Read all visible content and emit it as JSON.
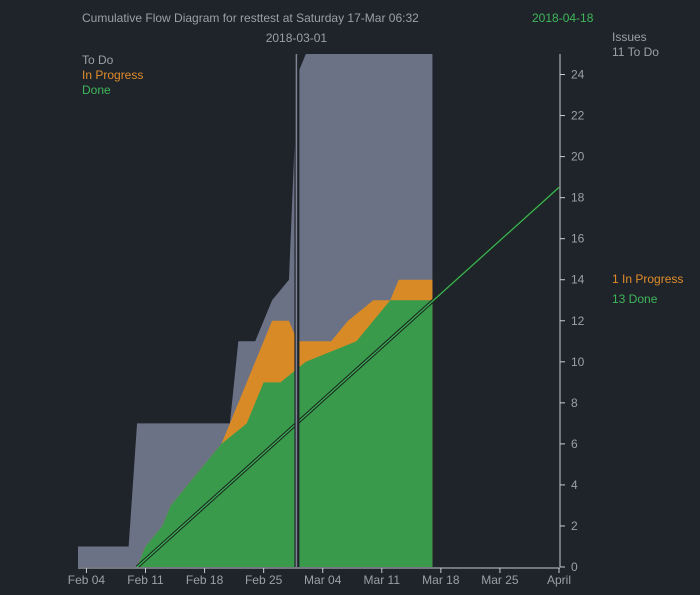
{
  "chart_data": {
    "type": "area",
    "title": "Cumulative Flow Diagram for resttest at Saturday 17-Mar 06:32",
    "forecast_date": "2018-04-18",
    "marker_date": "2018-03-01",
    "x_range": [
      "2018-02-03",
      "2018-04-01"
    ],
    "ylim": [
      0,
      25
    ],
    "y_ticks": [
      0,
      2,
      4,
      6,
      8,
      10,
      12,
      14,
      16,
      18,
      20,
      22,
      24
    ],
    "x_ticks": [
      {
        "date": "2018-02-04",
        "label": "Feb 04"
      },
      {
        "date": "2018-02-11",
        "label": "Feb 11"
      },
      {
        "date": "2018-02-18",
        "label": "Feb 18"
      },
      {
        "date": "2018-02-25",
        "label": "Feb 25"
      },
      {
        "date": "2018-03-04",
        "label": "Mar 04"
      },
      {
        "date": "2018-03-11",
        "label": "Mar 11"
      },
      {
        "date": "2018-03-18",
        "label": "Mar 18"
      },
      {
        "date": "2018-03-25",
        "label": "Mar 25"
      },
      {
        "date": "2018-04-01",
        "label": "April"
      }
    ],
    "colors": {
      "todo": "#6c7286",
      "in_progress": "#d88a26",
      "done": "#399a4c",
      "grid": "#c9ccd1"
    },
    "legend": [
      "To Do",
      "In Progress",
      "Done"
    ],
    "right_labels": {
      "header": "Issues",
      "todo": "11 To Do",
      "in_progress": "1 In Progress",
      "done": "13 Done"
    },
    "series": [
      {
        "name": "Done",
        "points": [
          [
            "2018-02-10",
            0
          ],
          [
            "2018-02-11",
            1
          ],
          [
            "2018-02-13",
            2
          ],
          [
            "2018-02-14",
            3
          ],
          [
            "2018-02-16",
            4
          ],
          [
            "2018-02-18",
            5
          ],
          [
            "2018-02-20",
            6
          ],
          [
            "2018-02-23",
            7
          ],
          [
            "2018-02-25",
            9
          ],
          [
            "2018-02-27",
            9
          ],
          [
            "2018-03-02",
            10
          ],
          [
            "2018-03-08",
            11
          ],
          [
            "2018-03-10",
            12
          ],
          [
            "2018-03-12",
            13
          ],
          [
            "2018-03-17",
            13
          ]
        ]
      },
      {
        "name": "In Progress",
        "points": [
          [
            "2018-02-10",
            0
          ],
          [
            "2018-02-11",
            1
          ],
          [
            "2018-02-13",
            2
          ],
          [
            "2018-02-14",
            3
          ],
          [
            "2018-02-16",
            4
          ],
          [
            "2018-02-18",
            5
          ],
          [
            "2018-02-20",
            6
          ],
          [
            "2018-02-21",
            7
          ],
          [
            "2018-02-22",
            8
          ],
          [
            "2018-02-23",
            9
          ],
          [
            "2018-02-24",
            10
          ],
          [
            "2018-02-25",
            11
          ],
          [
            "2018-02-26",
            12
          ],
          [
            "2018-02-28",
            12
          ],
          [
            "2018-03-01",
            11
          ],
          [
            "2018-03-05",
            11
          ],
          [
            "2018-03-07",
            12
          ],
          [
            "2018-03-10",
            13
          ],
          [
            "2018-03-12",
            13
          ],
          [
            "2018-03-13",
            14
          ],
          [
            "2018-03-17",
            14
          ]
        ]
      },
      {
        "name": "To Do",
        "points": [
          [
            "2018-02-03",
            1
          ],
          [
            "2018-02-09",
            1
          ],
          [
            "2018-02-10",
            7
          ],
          [
            "2018-02-21",
            7
          ],
          [
            "2018-02-22",
            11
          ],
          [
            "2018-02-24",
            11
          ],
          [
            "2018-02-25",
            12
          ],
          [
            "2018-02-26",
            13
          ],
          [
            "2018-02-28",
            14
          ],
          [
            "2018-03-01",
            24
          ],
          [
            "2018-03-02",
            25
          ],
          [
            "2018-03-17",
            25
          ]
        ]
      }
    ],
    "forecast_line": [
      [
        "2018-02-10",
        0
      ],
      [
        "2018-04-01",
        18.5
      ]
    ]
  }
}
